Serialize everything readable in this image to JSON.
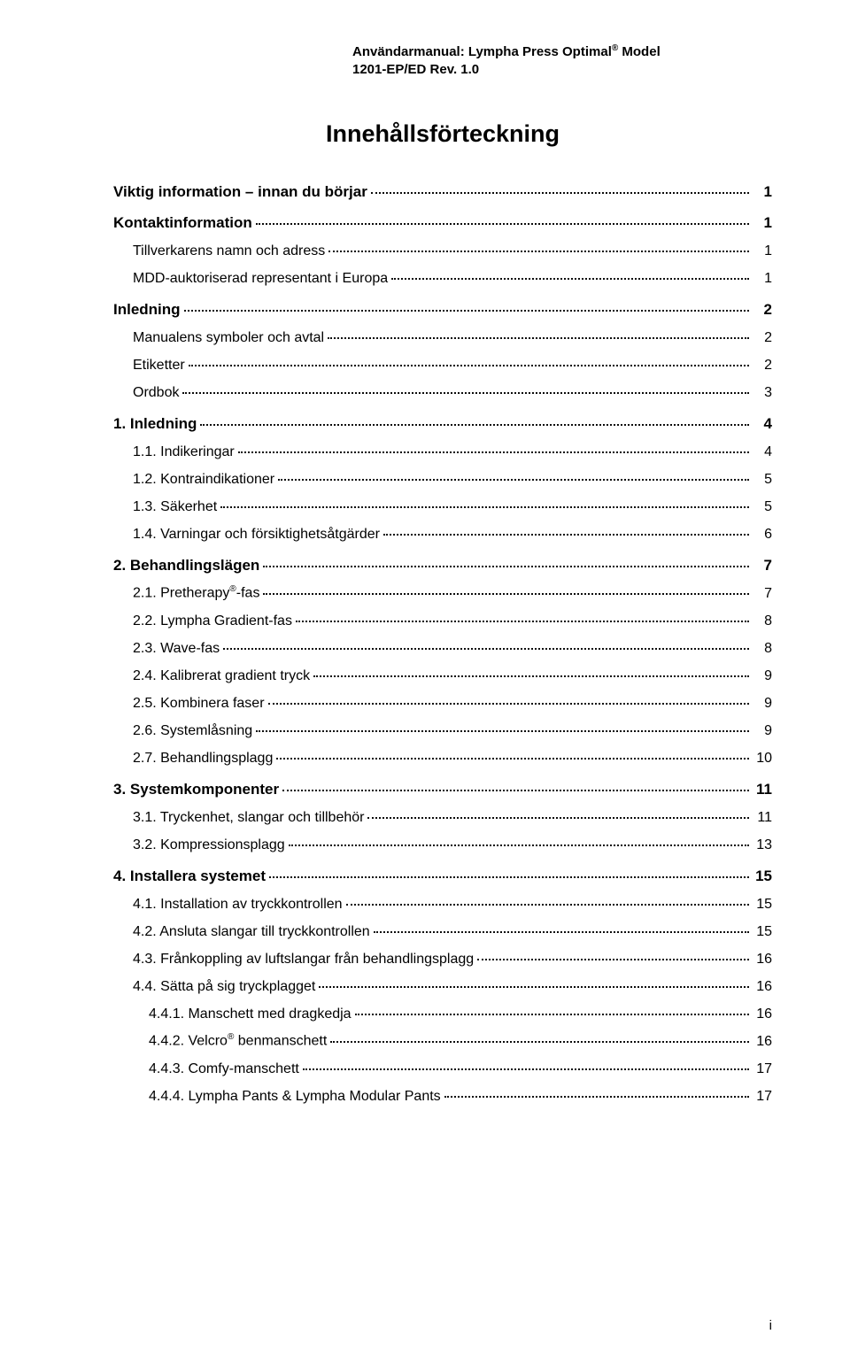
{
  "colors": {
    "background": "#ffffff",
    "text": "#000000",
    "leader": "#000000"
  },
  "typography": {
    "body_family": "Arial, Helvetica, sans-serif",
    "title_size_pt": 20,
    "header_size_pt": 11,
    "row_size_pt": 12,
    "row_bold_size_pt": 13
  },
  "header": {
    "line1_prefix": "Användarmanual: Lympha Press Optimal",
    "line1_sup": "®",
    "line1_suffix": " Model",
    "line2": "1201-EP/ED Rev. 1.0"
  },
  "title": "Innehållsförteckning",
  "footer": {
    "page_number": "i"
  },
  "toc": [
    {
      "level": 0,
      "label": "Viktig information – innan du börjar",
      "page": "1"
    },
    {
      "level": 0,
      "label": "Kontaktinformation",
      "page": "1"
    },
    {
      "level": 1,
      "label": "Tillverkarens namn och adress",
      "page": "1"
    },
    {
      "level": 1,
      "label": "MDD-auktoriserad representant i Europa",
      "page": "1"
    },
    {
      "level": 0,
      "label": "Inledning",
      "page": "2"
    },
    {
      "level": 1,
      "label": "Manualens symboler och avtal",
      "page": "2"
    },
    {
      "level": 1,
      "label": "Etiketter",
      "page": "2"
    },
    {
      "level": 1,
      "label": "Ordbok",
      "page": "3"
    },
    {
      "level": 0,
      "label": "1. Inledning",
      "page": "4"
    },
    {
      "level": 1,
      "label": "1.1. Indikeringar",
      "page": "4"
    },
    {
      "level": 1,
      "label": "1.2. Kontraindikationer",
      "page": "5"
    },
    {
      "level": 1,
      "label": "1.3. Säkerhet",
      "page": "5"
    },
    {
      "level": 1,
      "label": "1.4. Varningar och försiktighetsåtgärder",
      "page": "6"
    },
    {
      "level": 0,
      "label": "2. Behandlingslägen",
      "page": "7"
    },
    {
      "level": 1,
      "label_parts": [
        "2.1. Pretherapy",
        "®",
        "-fas"
      ],
      "page": "7"
    },
    {
      "level": 1,
      "label": "2.2. Lympha Gradient-fas",
      "page": "8"
    },
    {
      "level": 1,
      "label": "2.3. Wave-fas",
      "page": "8"
    },
    {
      "level": 1,
      "label": "2.4. Kalibrerat gradient tryck",
      "page": "9"
    },
    {
      "level": 1,
      "label": "2.5. Kombinera faser",
      "page": "9"
    },
    {
      "level": 1,
      "label": "2.6. Systemlåsning",
      "page": "9"
    },
    {
      "level": 1,
      "label": "2.7. Behandlingsplagg",
      "page": "10"
    },
    {
      "level": 0,
      "label": "3. Systemkomponenter",
      "page": "11"
    },
    {
      "level": 1,
      "label": "3.1. Tryckenhet, slangar och tillbehör",
      "page": "11"
    },
    {
      "level": 1,
      "label": "3.2. Kompressionsplagg",
      "page": "13"
    },
    {
      "level": 0,
      "label": "4. Installera systemet",
      "page": "15"
    },
    {
      "level": 1,
      "label": "4.1. Installation av tryckkontrollen",
      "page": "15"
    },
    {
      "level": 1,
      "label": "4.2. Ansluta slangar till tryckkontrollen",
      "page": "15"
    },
    {
      "level": 1,
      "label": "4.3. Frånkoppling av luftslangar från behandlingsplagg",
      "page": "16"
    },
    {
      "level": 1,
      "label": "4.4. Sätta på sig tryckplagget",
      "page": "16"
    },
    {
      "level": 2,
      "label": "4.4.1. Manschett med dragkedja",
      "page": "16"
    },
    {
      "level": 2,
      "label_parts": [
        "4.4.2. Velcro",
        "®",
        " benmanschett"
      ],
      "page": "16"
    },
    {
      "level": 2,
      "label": "4.4.3. Comfy-manschett",
      "page": "17"
    },
    {
      "level": 2,
      "label": "4.4.4. Lympha Pants & Lympha Modular Pants",
      "page": "17"
    }
  ]
}
